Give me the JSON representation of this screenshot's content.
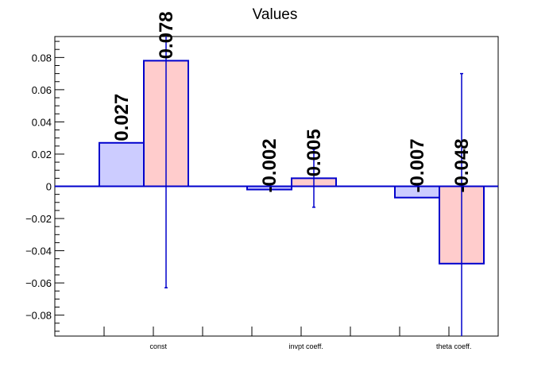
{
  "chart_data": {
    "type": "bar",
    "title": "Values",
    "xlabel": "",
    "ylabel": "",
    "categories": [
      "const",
      "invpt coeff.",
      "theta coeff."
    ],
    "series": [
      {
        "values": [
          0.027,
          -0.002,
          -0.007
        ],
        "labels": [
          "0.027",
          "-0.002",
          "-0.007"
        ],
        "errors": [
          null,
          null,
          null
        ],
        "fill": "#ccccff",
        "stroke": "#0000cc"
      },
      {
        "values": [
          0.078,
          0.005,
          -0.048
        ],
        "labels": [
          "0.078",
          "0.005",
          "-0.048"
        ],
        "errors": [
          0.141,
          0.018,
          0.118
        ],
        "fill": "#ffcccc",
        "stroke": "#0000cc"
      }
    ],
    "ylim": [
      -0.093,
      0.093
    ],
    "yticks": [
      -0.08,
      -0.06,
      -0.04,
      -0.02,
      0,
      0.02,
      0.04,
      0.06,
      0.08
    ],
    "ytick_labels": [
      "−0.08",
      "−0.06",
      "−0.04",
      "−0.02",
      "0",
      "0.02",
      "0.04",
      "0.06",
      "0.08"
    ],
    "grid": false,
    "legend": "none",
    "axis_color": "#000000",
    "baseline_color": "#0000cc",
    "error_color": "#0000cc"
  }
}
